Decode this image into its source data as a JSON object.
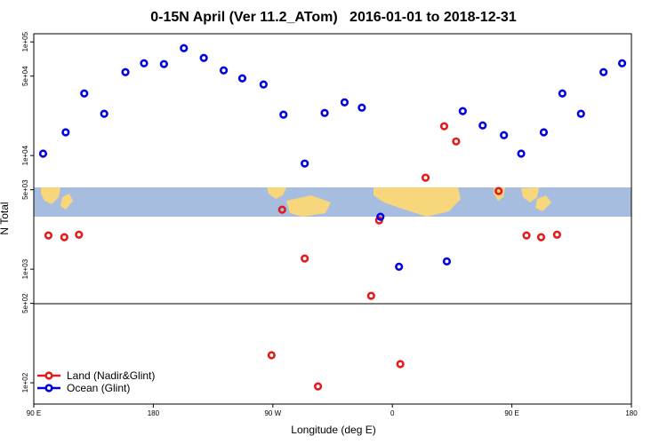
{
  "chart_data": {
    "type": "scatter",
    "title": "0-15N April (Ver 11.2_ATom)   2016-01-01 to 2018-12-31",
    "xlabel": "Longitude (deg E)",
    "ylabel": "N Total",
    "xlim": [
      90,
      540
    ],
    "ylim": [
      65,
      118000
    ],
    "log_y": true,
    "xticks": [
      {
        "value": 90,
        "label": "90 E"
      },
      {
        "value": 180,
        "label": "180"
      },
      {
        "value": 270,
        "label": "90 W"
      },
      {
        "value": 360,
        "label": "0"
      },
      {
        "value": 450,
        "label": "90 E"
      },
      {
        "value": 540,
        "label": "180"
      }
    ],
    "yticks": [
      {
        "value": 100000,
        "label": "1e+05"
      },
      {
        "value": 50000,
        "label": "5e+04"
      },
      {
        "value": 10000,
        "label": "1e+04"
      },
      {
        "value": 5000,
        "label": "5e+03"
      },
      {
        "value": 1000,
        "label": "1e+03"
      },
      {
        "value": 500,
        "label": "5e+02"
      },
      {
        "value": 100,
        "label": "1e+02"
      }
    ],
    "legend": "bottom-left",
    "series": [
      {
        "name": "Land (Nadir&Glint)",
        "color": "#e41a1c",
        "x": [
          101,
          113,
          124,
          269,
          277,
          294,
          304,
          344,
          350,
          366,
          385,
          399,
          408,
          440,
          461,
          472,
          484
        ],
        "values": [
          1980,
          1910,
          2010,
          175,
          3340,
          1240,
          93,
          583,
          2690,
          146,
          6380,
          18100,
          13300,
          4870,
          1980,
          1910,
          2010
        ]
      },
      {
        "name": "Ocean (Glint)",
        "color": "#0000e0",
        "x": [
          97,
          114,
          128,
          143,
          159,
          173,
          188,
          203,
          218,
          233,
          247,
          263,
          278,
          294,
          309,
          324,
          337,
          351,
          365,
          401,
          413,
          428,
          444,
          457,
          474,
          488,
          502,
          519,
          533
        ],
        "values": [
          10400,
          16000,
          35200,
          23300,
          54200,
          64900,
          63800,
          88100,
          72300,
          56200,
          47800,
          42200,
          22900,
          8500,
          23700,
          29400,
          26400,
          2890,
          1050,
          1170,
          24600,
          18400,
          15100,
          10400,
          16000,
          35200,
          23300,
          54200,
          64900
        ]
      }
    ]
  }
}
